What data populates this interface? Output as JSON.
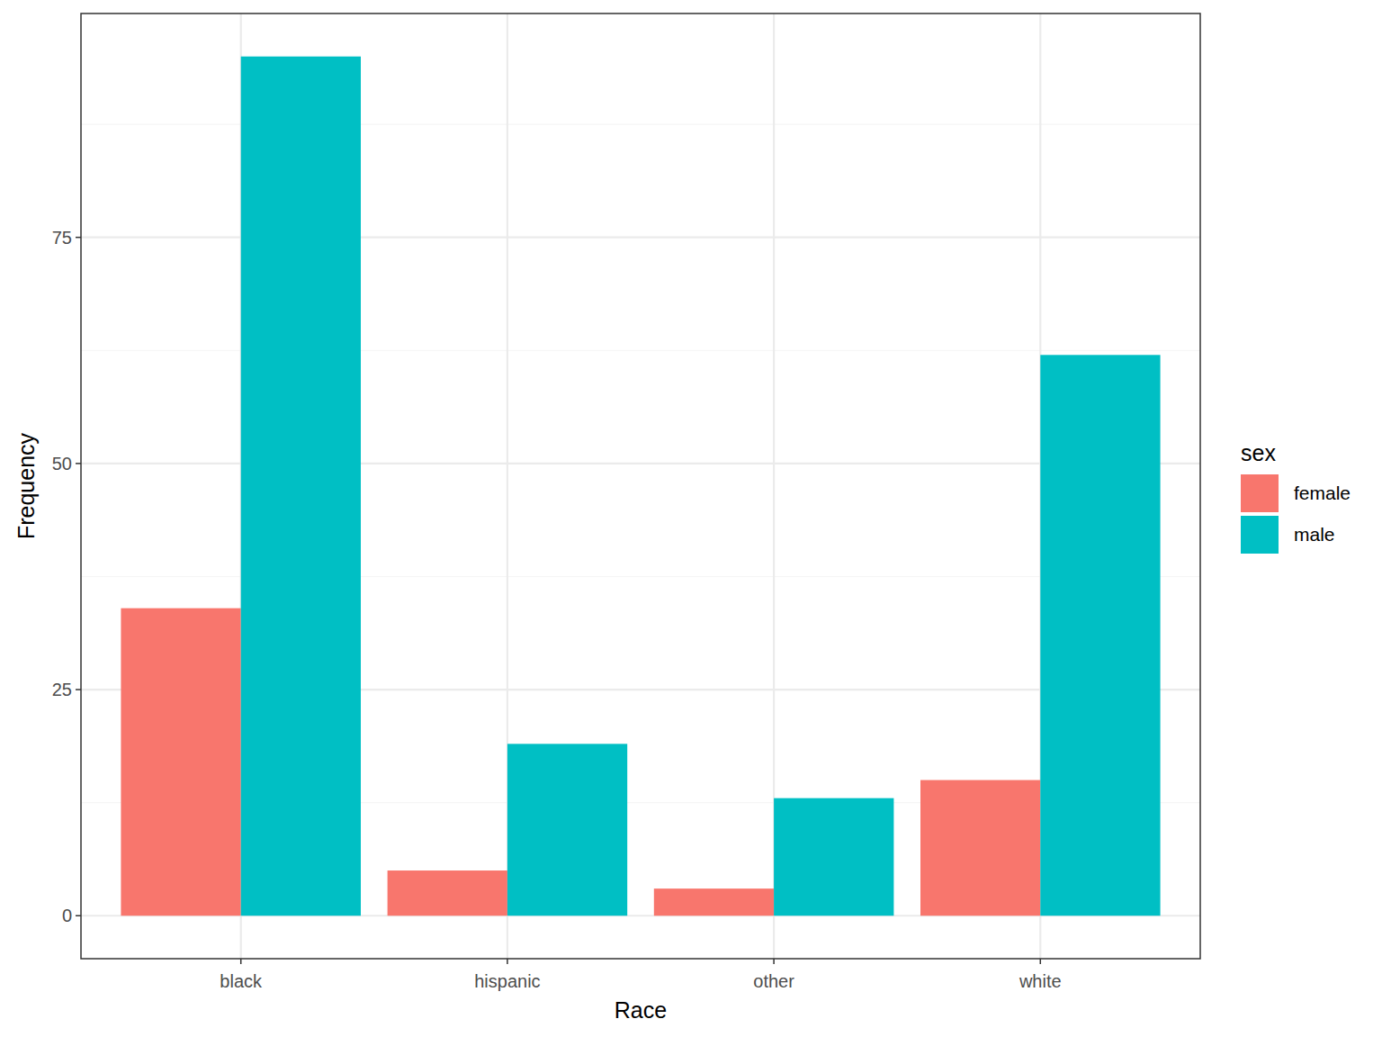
{
  "chart_data": {
    "type": "bar",
    "x_label": "Race",
    "y_label": "Frequency",
    "categories": [
      "black",
      "hispanic",
      "other",
      "white"
    ],
    "series": [
      {
        "name": "female",
        "color": "#F8766D",
        "values": [
          34,
          5,
          3,
          15
        ]
      },
      {
        "name": "male",
        "color": "#00BFC4",
        "values": [
          95,
          19,
          13,
          62
        ]
      }
    ],
    "ylim": [
      -4.75,
      99.75
    ],
    "yticks": [
      0,
      25,
      50,
      75
    ],
    "grid": true,
    "legend": "right",
    "legend_title": "sex"
  }
}
